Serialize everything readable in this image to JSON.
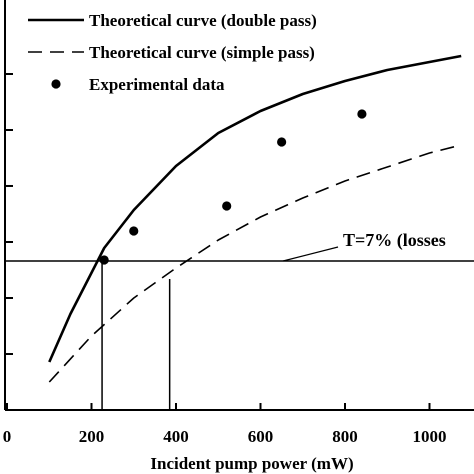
{
  "chart_data": {
    "type": "line",
    "xlabel": "Incident pump power (mW)",
    "ylabel": "",
    "xlim": [
      0,
      1075
    ],
    "ylim": [
      0,
      1
    ],
    "x_ticks": [
      0,
      200,
      400,
      600,
      800,
      1000
    ],
    "x_tick_labels": [
      "0",
      "200",
      "400",
      "600",
      "800",
      "1000"
    ],
    "y_ticks": [
      0,
      0.1505,
      0.3011,
      0.4516,
      0.6022,
      0.7527,
      0.9032
    ],
    "legend_position": "top-left",
    "series": [
      {
        "name": "Theoretical curve (double pass)",
        "style": "solid",
        "x": [
          100,
          150,
          230,
          300,
          400,
          500,
          600,
          700,
          800,
          900,
          1000,
          1075
        ],
        "y": [
          0.129,
          0.2581,
          0.4355,
          0.5376,
          0.6559,
          0.7446,
          0.8038,
          0.8495,
          0.8844,
          0.914,
          0.9355,
          0.9516
        ]
      },
      {
        "name": "Theoretical curve (simple pass)",
        "style": "dashed",
        "x": [
          100,
          200,
          300,
          400,
          500,
          600,
          700,
          800,
          900,
          1000,
          1075
        ],
        "y": [
          0.0753,
          0.1989,
          0.3011,
          0.3817,
          0.457,
          0.5188,
          0.5699,
          0.6156,
          0.6532,
          0.6909,
          0.7124
        ]
      },
      {
        "name": "Experimental data",
        "style": "markers",
        "x": [
          230,
          300,
          520,
          650,
          840
        ],
        "y": [
          0.4032,
          0.4812,
          0.5484,
          0.7204,
          0.7957
        ]
      }
    ],
    "annotations": [
      {
        "text": "T=7% (losses",
        "x": 890,
        "y": 0.4005
      },
      {
        "type": "hline",
        "y": 0.4005
      },
      {
        "type": "vline",
        "x": 225,
        "y_top": 0.4005
      },
      {
        "type": "vline",
        "x": 385,
        "y_top": 0.3522
      }
    ]
  }
}
